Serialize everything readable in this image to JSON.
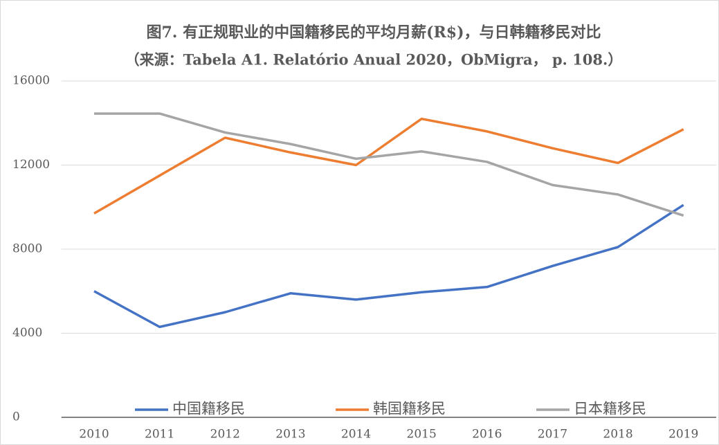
{
  "chart_data": {
    "type": "line",
    "title": "图7. 有正规职业的中国籍移民的平均月薪(R$)，与日韩籍移民对比",
    "subtitle": "（来源：Tabela A1. Relatório Anual 2020，ObMigra， p. 108.）",
    "categories": [
      "2010",
      "2011",
      "2012",
      "2013",
      "2014",
      "2015",
      "2016",
      "2017",
      "2018",
      "2019"
    ],
    "series": [
      {
        "name": "中国籍移民",
        "color": "#4472c4",
        "values": [
          6000,
          4300,
          5000,
          5900,
          5600,
          5950,
          6200,
          7200,
          8100,
          10100
        ]
      },
      {
        "name": "韩国籍移民",
        "color": "#ed7d31",
        "values": [
          9700,
          11500,
          13300,
          12600,
          12000,
          14200,
          13600,
          12800,
          12100,
          13700
        ]
      },
      {
        "name": "日本籍移民",
        "color": "#a5a5a5",
        "values": [
          14450,
          14450,
          13550,
          13000,
          12300,
          12650,
          12150,
          11050,
          10600,
          9600
        ]
      }
    ],
    "ylim": [
      0,
      16000
    ],
    "yticks": [
      0,
      4000,
      8000,
      12000,
      16000
    ],
    "grid": true,
    "legend": "bottom"
  }
}
